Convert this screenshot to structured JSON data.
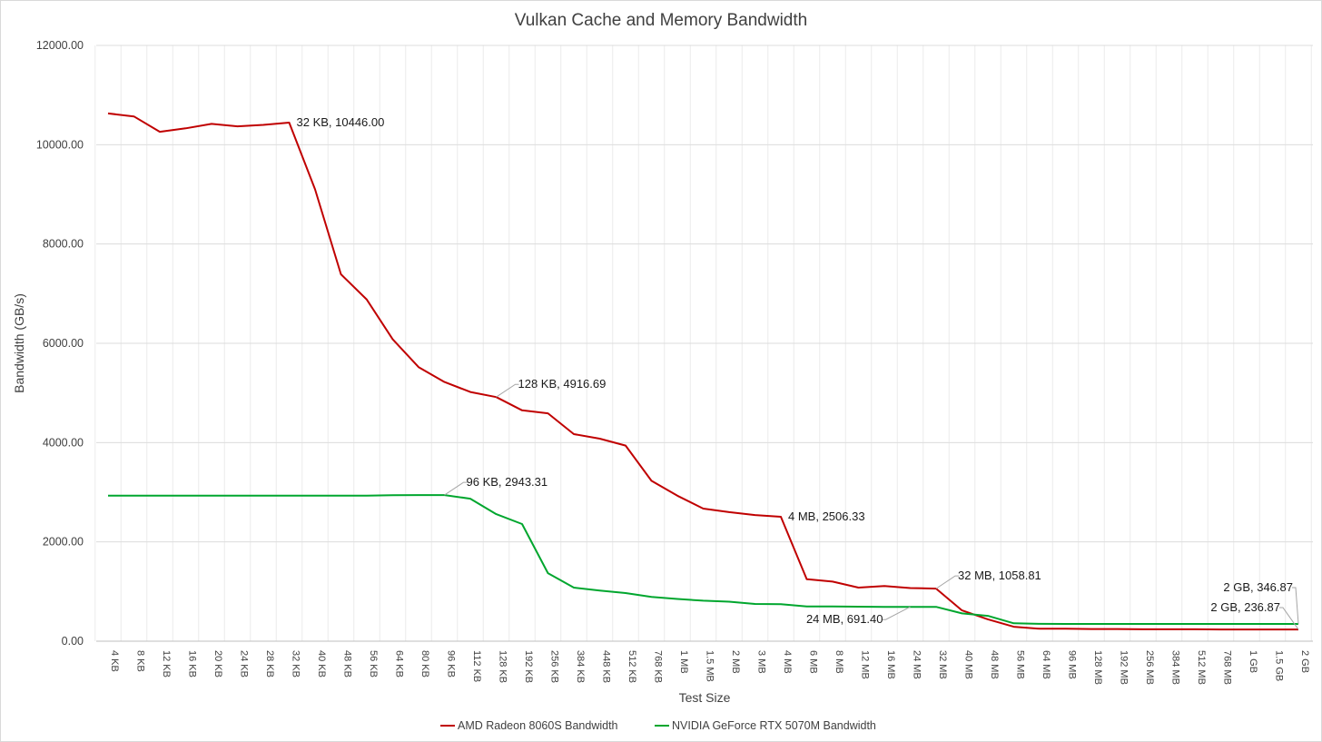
{
  "chart_data": {
    "type": "line",
    "title": "Vulkan Cache and Memory Bandwidth",
    "xlabel": "Test Size",
    "ylabel": "Bandwidth (GB/s)",
    "ylim": [
      0,
      12000
    ],
    "yticks": [
      "0.00",
      "2000.00",
      "4000.00",
      "6000.00",
      "8000.00",
      "10000.00",
      "12000.00"
    ],
    "categories": [
      "4 KB",
      "8 KB",
      "12 KB",
      "16 KB",
      "20 KB",
      "24 KB",
      "28 KB",
      "32 KB",
      "40 KB",
      "48 KB",
      "56 KB",
      "64 KB",
      "80 KB",
      "96 KB",
      "112 KB",
      "128 KB",
      "192 KB",
      "256 KB",
      "384 KB",
      "448 KB",
      "512 KB",
      "768 KB",
      "1 MB",
      "1.5 MB",
      "2 MB",
      "3 MB",
      "4 MB",
      "6 MB",
      "8 MB",
      "12 MB",
      "16 MB",
      "24 MB",
      "32 MB",
      "40 MB",
      "48 MB",
      "56 MB",
      "64 MB",
      "96 MB",
      "128 MB",
      "192 MB",
      "256 MB",
      "384 MB",
      "512 MB",
      "768 MB",
      "1 GB",
      "1.5 GB",
      "2 GB"
    ],
    "grid": true,
    "legend_position": "bottom",
    "series": [
      {
        "name": "AMD Radeon 8060S Bandwidth",
        "color": "#c00000",
        "values": [
          10630,
          10570,
          10260,
          10330,
          10420,
          10370,
          10400,
          10446,
          9100,
          7390,
          6880,
          6080,
          5520,
          5220,
          5020,
          4916.69,
          4650,
          4590,
          4170,
          4080,
          3940,
          3230,
          2930,
          2670,
          2600,
          2540,
          2506.33,
          1250,
          1200,
          1080,
          1110,
          1070,
          1058.81,
          620,
          440,
          290,
          250,
          250,
          245,
          245,
          240,
          240,
          240,
          236.87,
          236.87,
          236.87,
          236.87
        ]
      },
      {
        "name": "NVIDIA GeForce RTX 5070M Bandwidth",
        "color": "#00a62e",
        "values": [
          2930,
          2930,
          2930,
          2930,
          2930,
          2930,
          2930,
          2930,
          2930,
          2930,
          2930,
          2940,
          2943.31,
          2943.31,
          2870,
          2560,
          2360,
          1370,
          1080,
          1020,
          970,
          890,
          850,
          815,
          795,
          750,
          745,
          700,
          700,
          695,
          691.4,
          691.4,
          691.4,
          560,
          510,
          360,
          350,
          346.87,
          346.87,
          346.87,
          346.87,
          346.87,
          346.87,
          346.87,
          346.87,
          346.87,
          346.87
        ]
      }
    ],
    "annotations": [
      {
        "series": 0,
        "category": "32 KB",
        "text": "32 KB, 10446.00",
        "placement": "right"
      },
      {
        "series": 0,
        "category": "128 KB",
        "text": "128 KB, 4916.69",
        "placement": "upper-right-leader"
      },
      {
        "series": 0,
        "category": "4 MB",
        "text": "4 MB, 2506.33",
        "placement": "right"
      },
      {
        "series": 0,
        "category": "32 MB",
        "text": "32 MB, 1058.81",
        "placement": "upper-right-leader"
      },
      {
        "series": 0,
        "category": "2 GB",
        "text": "2 GB, 236.87",
        "placement": "upper-left-leader"
      },
      {
        "series": 1,
        "category": "96 KB",
        "text": "96 KB, 2943.31",
        "placement": "upper-right-leader"
      },
      {
        "series": 1,
        "category": "24 MB",
        "text": "24 MB, 691.40",
        "placement": "lower-left-leader"
      },
      {
        "series": 1,
        "category": "2 GB",
        "text": "2 GB, 346.87",
        "placement": "upper-leader"
      }
    ]
  }
}
